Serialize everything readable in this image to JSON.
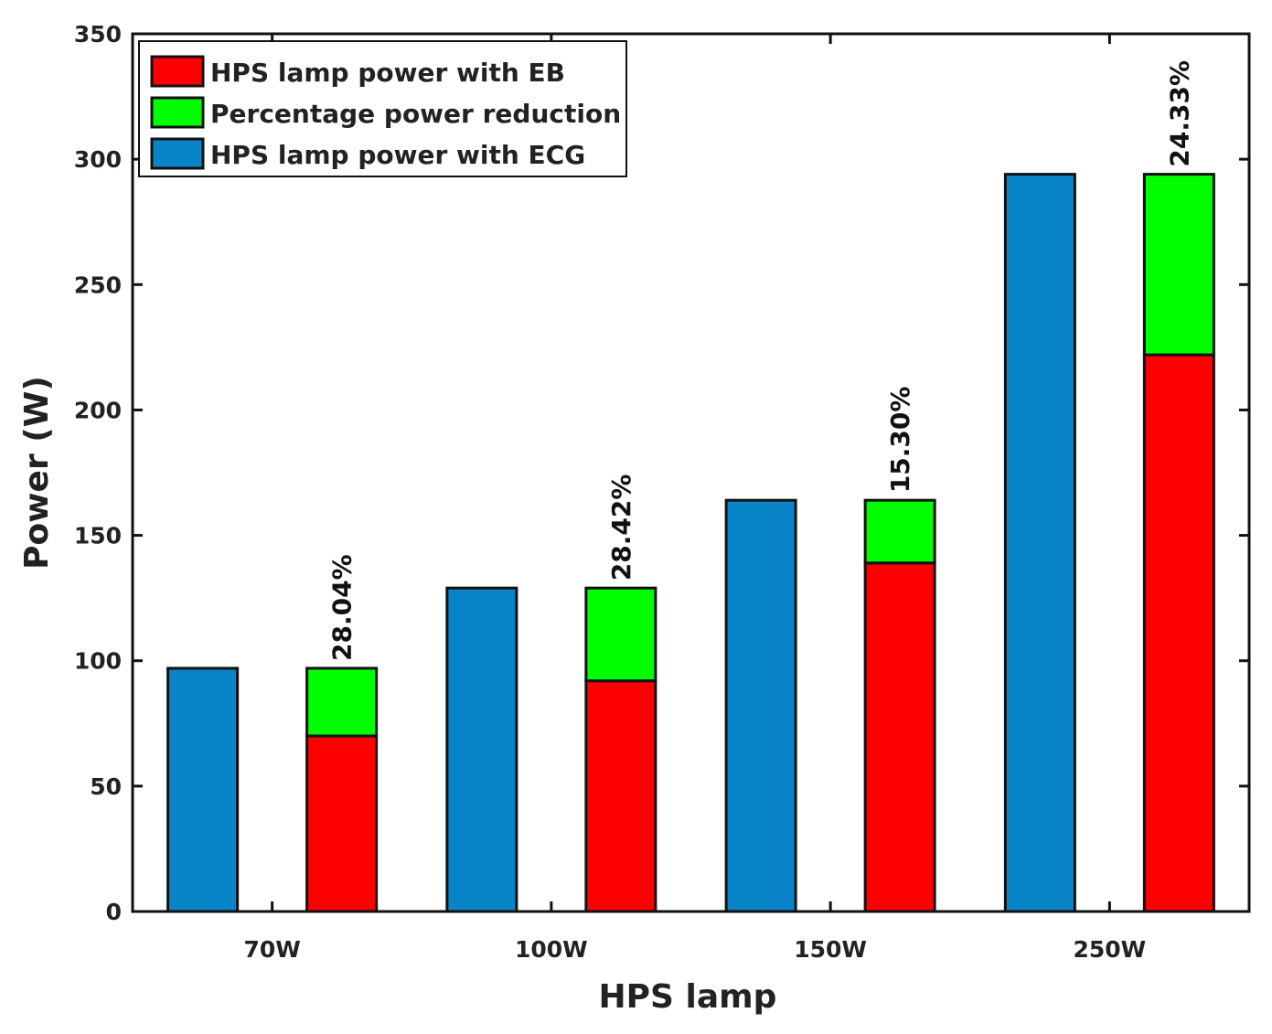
{
  "chart_data": {
    "type": "bar",
    "title": "",
    "xlabel": "HPS lamp",
    "ylabel": "Power (W)",
    "ylim": [
      0,
      350
    ],
    "yticks": [
      0,
      50,
      100,
      150,
      200,
      250,
      300,
      350
    ],
    "categories": [
      "70W",
      "100W",
      "150W",
      "250W"
    ],
    "series": [
      {
        "name": "HPS lamp power with EB",
        "color": "#ff0000",
        "values": [
          70,
          92,
          139,
          222
        ]
      },
      {
        "name": "Percentage power reduction",
        "color": "#00ff00",
        "values": [
          27,
          37,
          25,
          72
        ]
      },
      {
        "name": "HPS lamp power with ECG",
        "color": "#0a84c8",
        "values": [
          97,
          129,
          164,
          294
        ]
      }
    ],
    "percent_labels": [
      "28.04%",
      "28.42%",
      "15.30%",
      "24.33%"
    ],
    "legend": {
      "position": "top-left",
      "entries": [
        "HPS lamp power with EB",
        "Percentage power reduction",
        "HPS lamp power with ECG"
      ]
    }
  }
}
